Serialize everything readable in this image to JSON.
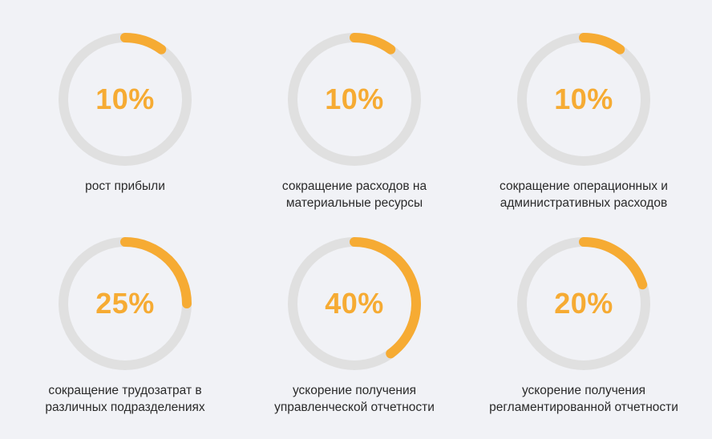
{
  "colors": {
    "accent": "#f6ab33",
    "track": "#e0e0e0",
    "background": "#f1f2f6",
    "text": "#2a2a2a"
  },
  "metrics": [
    {
      "percent": 10,
      "value_label": "10%",
      "caption": "рост прибыли"
    },
    {
      "percent": 10,
      "value_label": "10%",
      "caption": "сокращение расходов на\nматериальные ресурсы"
    },
    {
      "percent": 10,
      "value_label": "10%",
      "caption": "сокращение операционных и\nадминистративных расходов"
    },
    {
      "percent": 25,
      "value_label": "25%",
      "caption": "сокращение трудозатрат в\nразличных подразделениях"
    },
    {
      "percent": 40,
      "value_label": "40%",
      "caption": "ускорение получения\nуправленческой отчетности"
    },
    {
      "percent": 20,
      "value_label": "20%",
      "caption": "ускорение получения\nрегламентированной отчетности"
    }
  ]
}
